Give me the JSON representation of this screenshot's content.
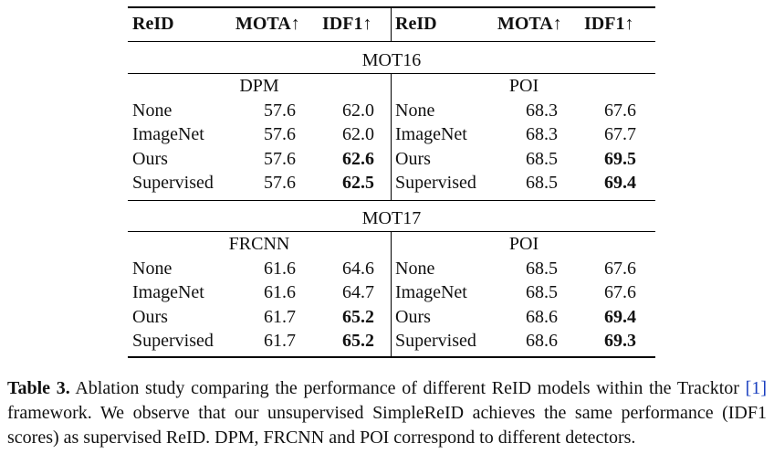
{
  "table": {
    "headers": {
      "left": [
        "ReID",
        "MOTA↑",
        "IDF1↑"
      ],
      "right": [
        "ReID",
        "MOTA↑",
        "IDF1↑"
      ]
    },
    "sections": [
      {
        "dataset": "MOT16",
        "left": {
          "detector": "DPM",
          "rows": [
            {
              "reid": "None",
              "mota": "57.6",
              "idf1": "62.0",
              "bold": false
            },
            {
              "reid": "ImageNet",
              "mota": "57.6",
              "idf1": "62.0",
              "bold": false
            },
            {
              "reid": "Ours",
              "mota": "57.6",
              "idf1": "62.6",
              "bold": true
            },
            {
              "reid": "Supervised",
              "mota": "57.6",
              "idf1": "62.5",
              "bold": true
            }
          ]
        },
        "right": {
          "detector": "POI",
          "rows": [
            {
              "reid": "None",
              "mota": "68.3",
              "idf1": "67.6",
              "bold": false
            },
            {
              "reid": "ImageNet",
              "mota": "68.3",
              "idf1": "67.7",
              "bold": false
            },
            {
              "reid": "Ours",
              "mota": "68.5",
              "idf1": "69.5",
              "bold": true
            },
            {
              "reid": "Supervised",
              "mota": "68.5",
              "idf1": "69.4",
              "bold": true
            }
          ]
        }
      },
      {
        "dataset": "MOT17",
        "left": {
          "detector": "FRCNN",
          "rows": [
            {
              "reid": "None",
              "mota": "61.6",
              "idf1": "64.6",
              "bold": false
            },
            {
              "reid": "ImageNet",
              "mota": "61.6",
              "idf1": "64.7",
              "bold": false
            },
            {
              "reid": "Ours",
              "mota": "61.7",
              "idf1": "65.2",
              "bold": true
            },
            {
              "reid": "Supervised",
              "mota": "61.7",
              "idf1": "65.2",
              "bold": true
            }
          ]
        },
        "right": {
          "detector": "POI",
          "rows": [
            {
              "reid": "None",
              "mota": "68.5",
              "idf1": "67.6",
              "bold": false
            },
            {
              "reid": "ImageNet",
              "mota": "68.5",
              "idf1": "67.6",
              "bold": false
            },
            {
              "reid": "Ours",
              "mota": "68.6",
              "idf1": "69.4",
              "bold": true
            },
            {
              "reid": "Supervised",
              "mota": "68.6",
              "idf1": "69.3",
              "bold": true
            }
          ]
        }
      }
    ]
  },
  "caption": {
    "label": "Table 3.",
    "text_before_ref": " Ablation study comparing the performance of different ReID models within the Tracktor ",
    "ref": "[1]",
    "text_after_ref": " framework. We observe that our unsupervised SimpleReID achieves the same performance (IDF1 scores) as supervised ReID. DPM, FRCNN and POI correspond to different detectors."
  }
}
